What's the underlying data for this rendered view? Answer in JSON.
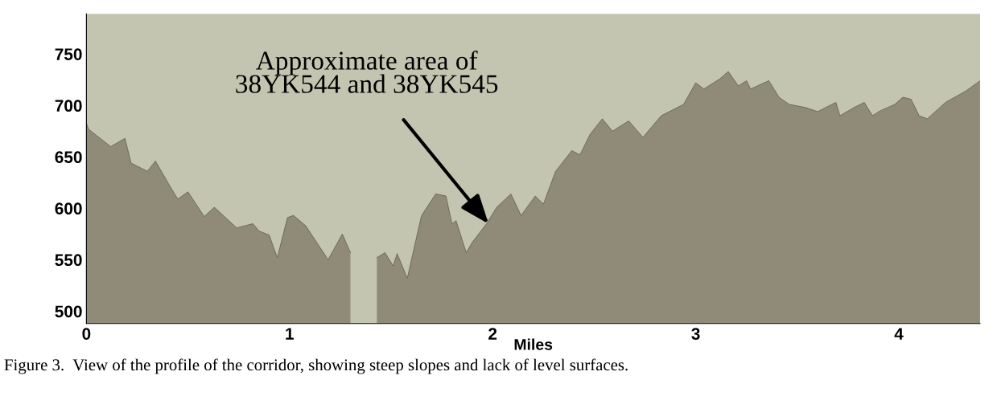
{
  "chart_data": {
    "type": "area",
    "xlabel": "Miles",
    "x": [
      0,
      0.01,
      0.12,
      0.19,
      0.22,
      0.3,
      0.34,
      0.41,
      0.45,
      0.5,
      0.58,
      0.63,
      0.74,
      0.82,
      0.85,
      0.9,
      0.94,
      0.99,
      1.02,
      1.08,
      1.19,
      1.26,
      1.3,
      1.33,
      1.41,
      1.43,
      1.47,
      1.51,
      1.53,
      1.58,
      1.62,
      1.65,
      1.72,
      1.77,
      1.8,
      1.82,
      1.87,
      1.9,
      1.97,
      2.02,
      2.09,
      2.14,
      2.21,
      2.25,
      2.31,
      2.39,
      2.43,
      2.48,
      2.54,
      2.59,
      2.67,
      2.74,
      2.83,
      2.94,
      3.0,
      3.04,
      3.12,
      3.16,
      3.21,
      3.25,
      3.27,
      3.36,
      3.41,
      3.46,
      3.54,
      3.6,
      3.69,
      3.71,
      3.78,
      3.83,
      3.87,
      3.91,
      3.98,
      4.02,
      4.06,
      4.1,
      4.14,
      4.23,
      4.33,
      4.4
    ],
    "series": [
      {
        "color": "#8f8b78",
        "values": [
          683,
          677,
          660,
          668,
          644,
          636,
          646,
          622,
          609,
          616,
          592,
          601,
          581,
          585,
          578,
          574,
          552,
          591,
          593,
          583,
          550,
          575,
          557,
          null,
          null,
          552,
          557,
          544,
          556,
          532,
          567,
          593,
          614,
          612,
          585,
          588,
          557,
          567,
          585,
          601,
          614,
          593,
          612,
          604,
          636,
          656,
          652,
          672,
          687,
          675,
          685,
          669,
          690,
          701,
          722,
          716,
          726,
          733,
          719,
          724,
          716,
          724,
          708,
          701,
          698,
          694,
          703,
          690,
          698,
          703,
          690,
          695,
          701,
          708,
          706,
          690,
          687,
          703,
          714,
          724
        ]
      }
    ],
    "xlim": [
      0,
      4.4
    ],
    "xticks": [
      0,
      1,
      2,
      3,
      4
    ],
    "ylim": [
      488,
      789
    ],
    "yticks": [
      500,
      550,
      600,
      650,
      700,
      750
    ],
    "annotations": [
      {
        "text": "Approximate area of\n38YK544 and 38YK545",
        "x": 1.98,
        "y": 585
      },
      "Figure 3.  View of the profile of the corridor, showing steep slopes and lack of level surfaces."
    ]
  }
}
